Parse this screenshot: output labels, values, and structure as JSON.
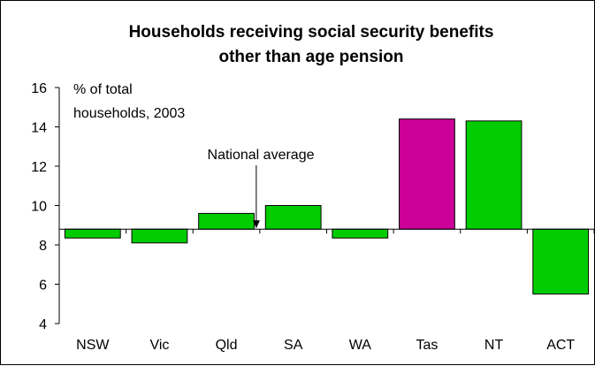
{
  "chart_data": {
    "type": "bar",
    "title": "Households receiving social security benefits",
    "subtitle": "other than age pension",
    "ylabel": "% of total households, 2003",
    "ylabel_lines": [
      "% of total",
      "households, 2003"
    ],
    "ylim": [
      4,
      16
    ],
    "yticks": [
      "4",
      "6",
      "8",
      "10",
      "12",
      "14",
      "16"
    ],
    "baseline": 8.8,
    "categories": [
      "NSW",
      "Vic",
      "Qld",
      "SA",
      "WA",
      "Tas",
      "NT",
      "ACT"
    ],
    "values": [
      8.35,
      8.1,
      9.6,
      10.0,
      8.35,
      14.4,
      14.3,
      5.5
    ],
    "colors": [
      "#00cc00",
      "#00cc00",
      "#00cc00",
      "#00cc00",
      "#00cc00",
      "#cc0099",
      "#00cc00",
      "#00cc00"
    ],
    "annotation": "National average",
    "annotation_target": "Qld",
    "grid": false,
    "legend": "none"
  }
}
